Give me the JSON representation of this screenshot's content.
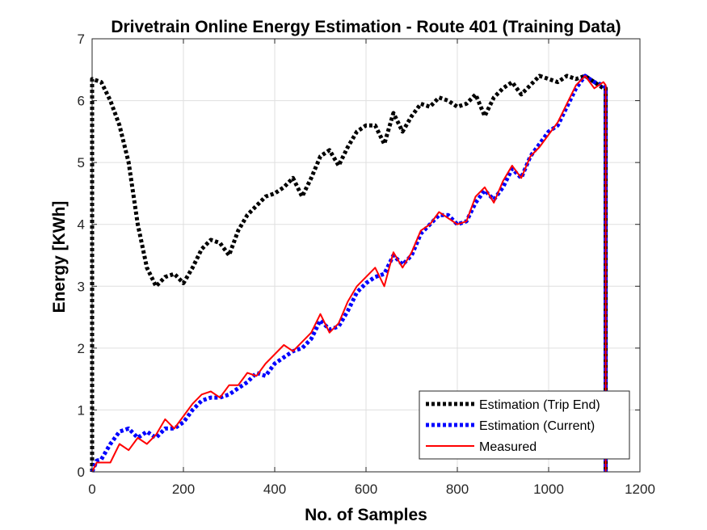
{
  "chart_data": {
    "type": "line",
    "title": "Drivetrain Online Energy Estimation - Route 401 (Training Data)",
    "xlabel": "No. of Samples",
    "ylabel": "Energy [KWh]",
    "xlim": [
      0,
      1200
    ],
    "ylim": [
      0,
      7
    ],
    "xticks": [
      0,
      200,
      400,
      600,
      800,
      1000,
      1200
    ],
    "yticks": [
      0,
      1,
      2,
      3,
      4,
      5,
      6,
      7
    ],
    "grid": true,
    "legend_position": "bottom-right",
    "series": [
      {
        "name": "Estimation (Trip End)",
        "color": "#000000",
        "style": "dotted",
        "x": [
          0,
          0,
          20,
          40,
          60,
          80,
          100,
          120,
          140,
          160,
          180,
          200,
          220,
          240,
          260,
          280,
          300,
          320,
          340,
          360,
          380,
          400,
          420,
          440,
          460,
          480,
          500,
          520,
          540,
          560,
          580,
          600,
          620,
          640,
          660,
          680,
          700,
          720,
          740,
          760,
          780,
          800,
          820,
          840,
          860,
          880,
          900,
          920,
          940,
          960,
          980,
          1000,
          1020,
          1040,
          1060,
          1080,
          1100,
          1120,
          1125,
          1125
        ],
        "y": [
          0,
          6.35,
          6.3,
          6.0,
          5.6,
          5.0,
          4.0,
          3.3,
          3.0,
          3.15,
          3.2,
          3.05,
          3.3,
          3.6,
          3.75,
          3.7,
          3.5,
          3.9,
          4.15,
          4.3,
          4.45,
          4.5,
          4.6,
          4.75,
          4.45,
          4.75,
          5.1,
          5.2,
          4.95,
          5.25,
          5.5,
          5.6,
          5.6,
          5.3,
          5.8,
          5.5,
          5.75,
          5.95,
          5.9,
          6.05,
          6.0,
          5.9,
          5.95,
          6.1,
          5.75,
          6.05,
          6.2,
          6.3,
          6.1,
          6.25,
          6.4,
          6.35,
          6.3,
          6.4,
          6.35,
          6.4,
          6.3,
          6.2,
          6.2,
          0
        ]
      },
      {
        "name": "Estimation (Current)",
        "color": "#0000ff",
        "style": "dotted",
        "x": [
          0,
          10,
          20,
          40,
          60,
          80,
          100,
          120,
          140,
          160,
          180,
          200,
          220,
          240,
          260,
          280,
          300,
          320,
          340,
          360,
          380,
          400,
          420,
          440,
          460,
          480,
          500,
          520,
          540,
          560,
          580,
          600,
          620,
          640,
          660,
          680,
          700,
          720,
          740,
          760,
          780,
          800,
          820,
          840,
          860,
          880,
          900,
          920,
          940,
          960,
          980,
          1000,
          1020,
          1040,
          1060,
          1080,
          1100,
          1120,
          1125,
          1125
        ],
        "y": [
          0,
          0.18,
          0.2,
          0.45,
          0.65,
          0.7,
          0.55,
          0.65,
          0.55,
          0.7,
          0.7,
          0.8,
          1.0,
          1.15,
          1.2,
          1.2,
          1.25,
          1.35,
          1.45,
          1.6,
          1.55,
          1.75,
          1.85,
          1.95,
          2.0,
          2.15,
          2.45,
          2.3,
          2.35,
          2.6,
          2.9,
          3.05,
          3.15,
          3.2,
          3.5,
          3.35,
          3.5,
          3.85,
          4.0,
          4.15,
          4.15,
          4.0,
          4.05,
          4.35,
          4.55,
          4.4,
          4.6,
          4.9,
          4.75,
          5.1,
          5.3,
          5.5,
          5.6,
          5.9,
          6.2,
          6.4,
          6.3,
          6.25,
          6.2,
          0
        ]
      },
      {
        "name": "Measured",
        "color": "#ff0000",
        "style": "solid",
        "x": [
          0,
          10,
          20,
          40,
          60,
          80,
          100,
          120,
          140,
          160,
          180,
          200,
          220,
          240,
          260,
          280,
          300,
          320,
          340,
          360,
          380,
          400,
          420,
          440,
          460,
          480,
          500,
          520,
          540,
          560,
          580,
          600,
          620,
          640,
          660,
          680,
          700,
          720,
          740,
          760,
          780,
          800,
          820,
          840,
          860,
          880,
          900,
          920,
          940,
          960,
          980,
          1000,
          1020,
          1040,
          1060,
          1080,
          1100,
          1120,
          1125,
          1125
        ],
        "y": [
          0,
          0.15,
          0.15,
          0.15,
          0.45,
          0.35,
          0.55,
          0.45,
          0.6,
          0.85,
          0.7,
          0.9,
          1.1,
          1.25,
          1.3,
          1.2,
          1.4,
          1.4,
          1.6,
          1.55,
          1.75,
          1.9,
          2.05,
          1.95,
          2.1,
          2.25,
          2.55,
          2.25,
          2.4,
          2.75,
          3.0,
          3.15,
          3.3,
          3.0,
          3.55,
          3.3,
          3.55,
          3.9,
          4.0,
          4.2,
          4.1,
          4.0,
          4.05,
          4.45,
          4.6,
          4.35,
          4.7,
          4.95,
          4.75,
          5.1,
          5.25,
          5.45,
          5.65,
          5.95,
          6.25,
          6.4,
          6.2,
          6.3,
          6.25,
          0
        ]
      }
    ]
  }
}
